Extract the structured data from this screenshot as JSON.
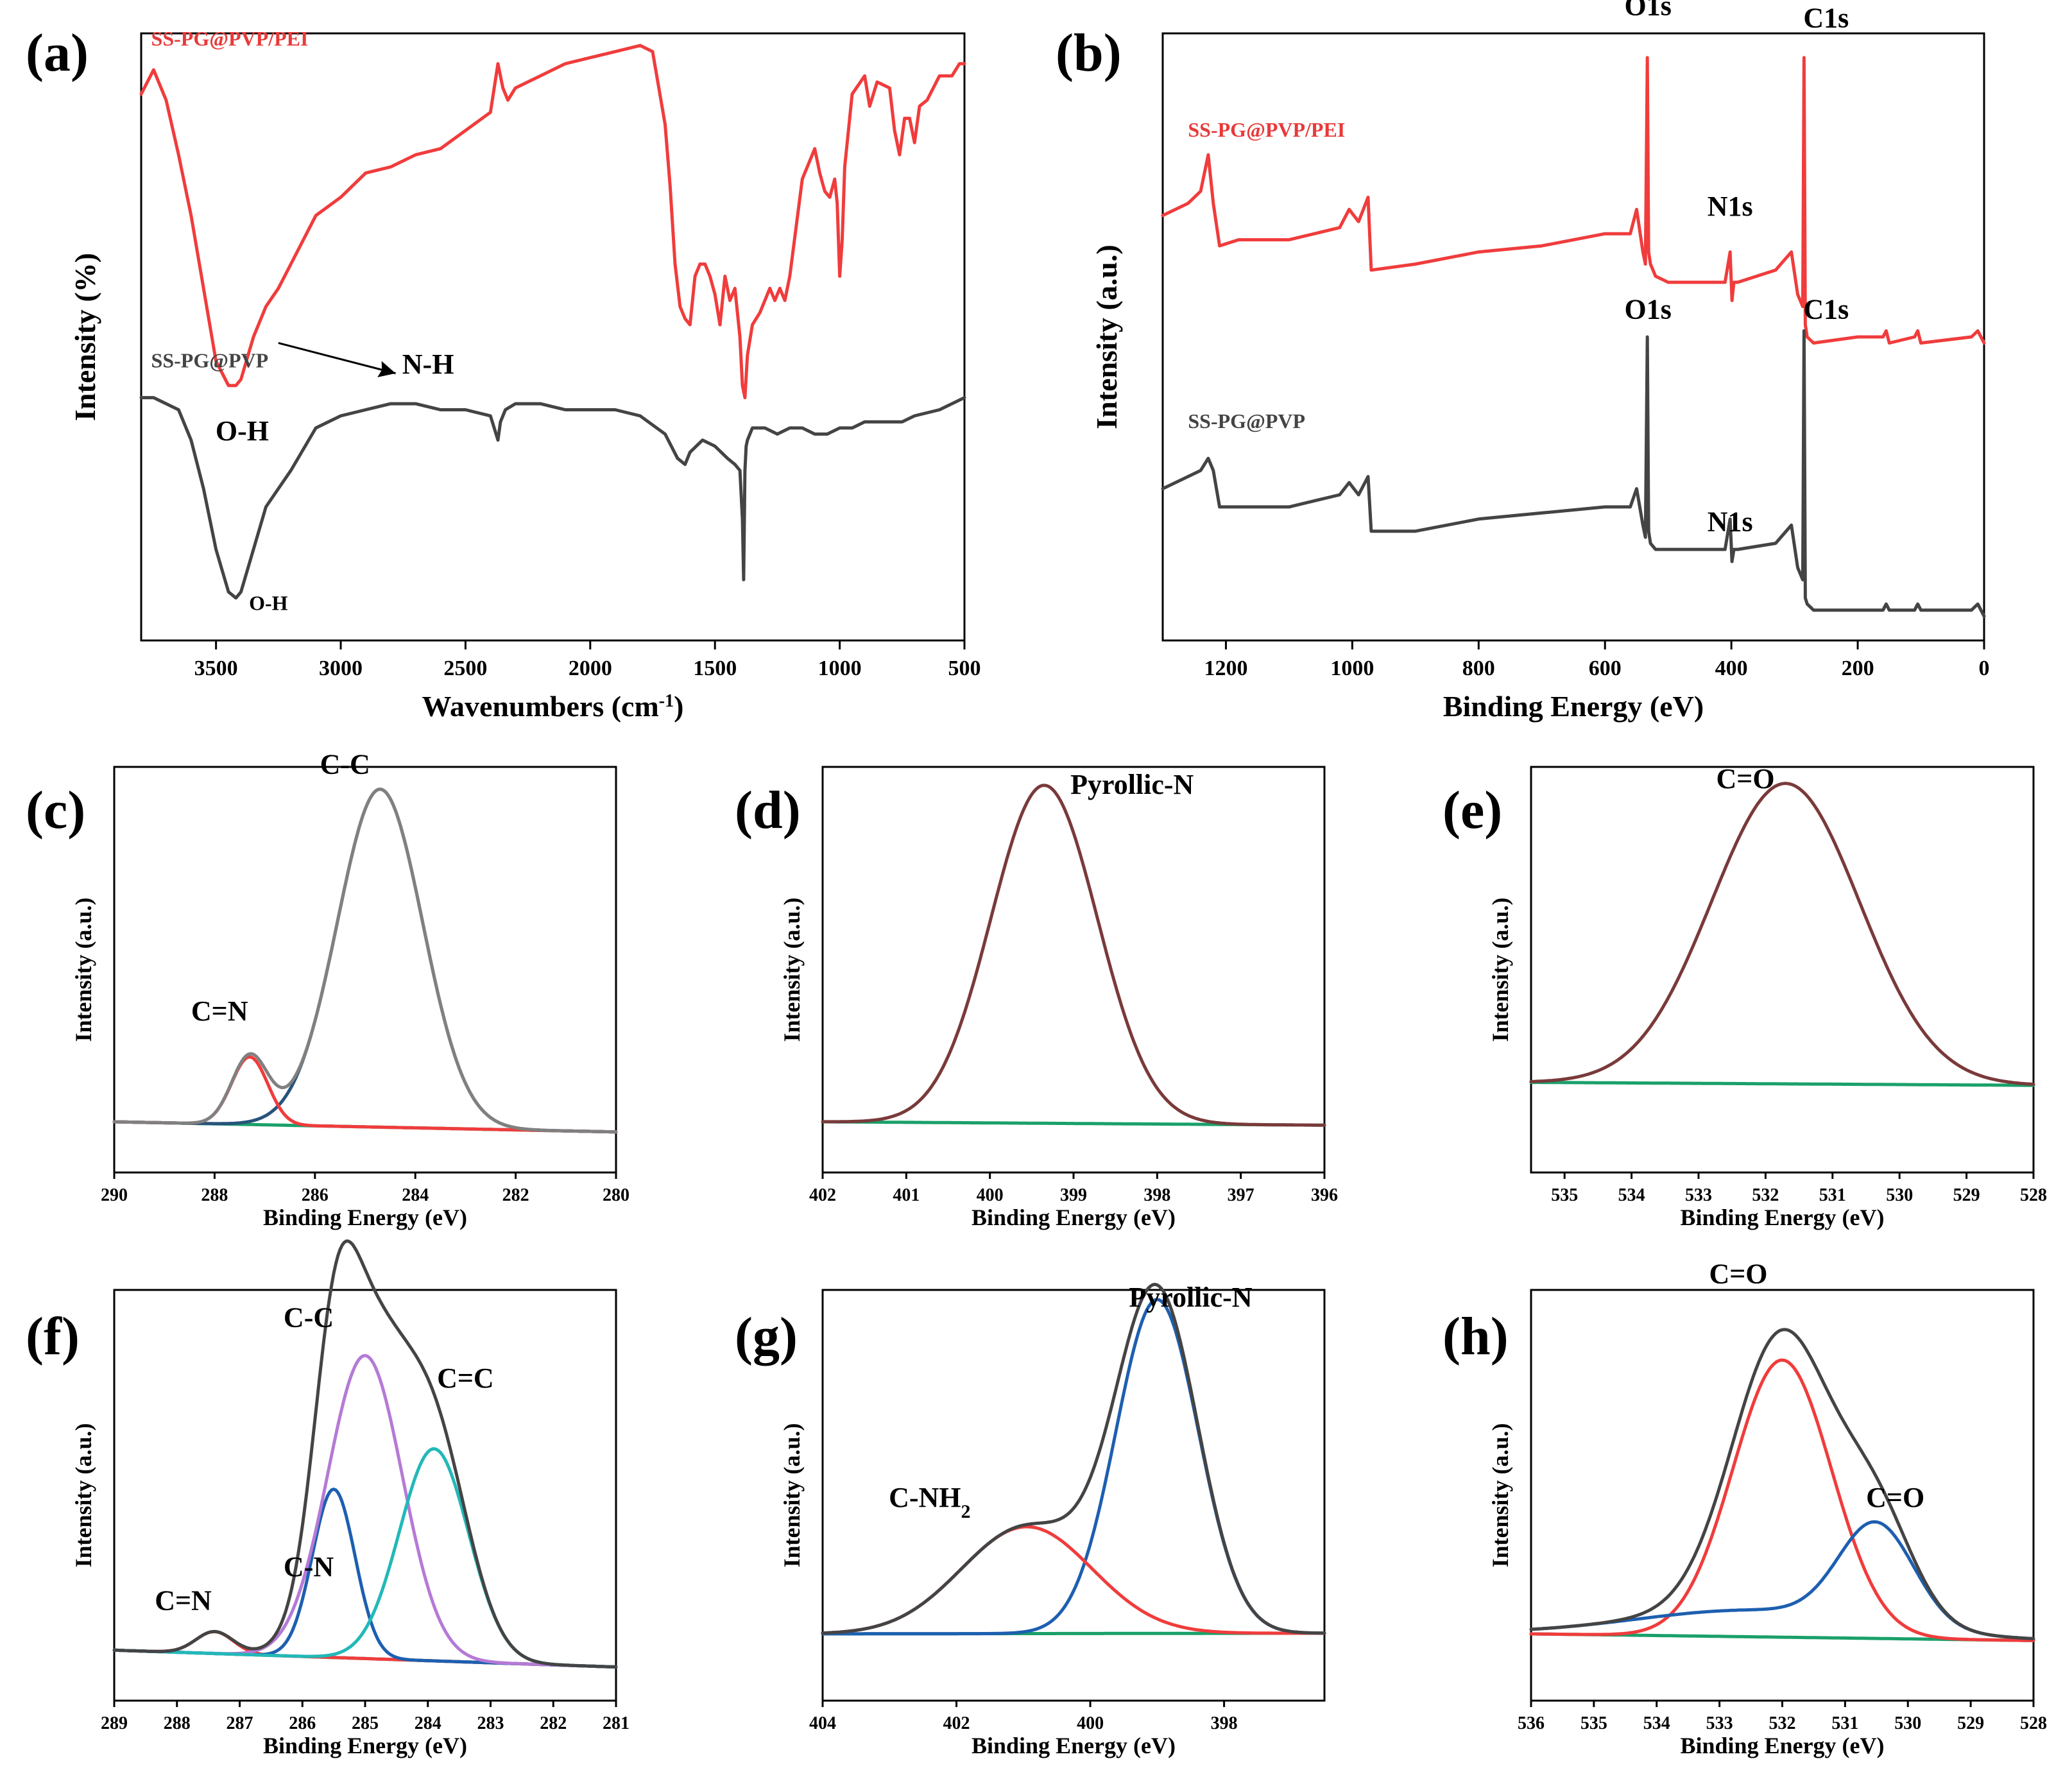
{
  "colors": {
    "red": "#f03c3c",
    "dark": "#444444",
    "navy": "#27537a",
    "brown": "#7a3a3a",
    "green": "#1aa06a",
    "blue": "#1d5fb0",
    "purple": "#b57ad6",
    "cyan": "#22b8b8",
    "gray": "#808080",
    "red_label": "#e83a3a"
  },
  "chart_data": [
    {
      "panel": "(a)",
      "type": "line",
      "xlabel": "Wavenumbers (cm",
      "xlabel_sup": "-1",
      "xlabel_tail": ")",
      "ylabel": "Intensity (%)",
      "xlim": [
        3800,
        500
      ],
      "ylim": [
        0,
        100
      ],
      "xticks": [
        3500,
        3000,
        2500,
        2000,
        1500,
        1000,
        500
      ],
      "series": [
        {
          "name": "SS-PG@PVP/PEI",
          "color": "red",
          "x": [
            3800,
            3750,
            3700,
            3650,
            3600,
            3550,
            3500,
            3450,
            3420,
            3400,
            3350,
            3300,
            3250,
            3200,
            3100,
            3000,
            2900,
            2800,
            2700,
            2600,
            2500,
            2400,
            2370,
            2350,
            2330,
            2300,
            2200,
            2100,
            2000,
            1900,
            1800,
            1750,
            1700,
            1680,
            1660,
            1640,
            1620,
            1600,
            1580,
            1560,
            1540,
            1520,
            1500,
            1480,
            1460,
            1440,
            1420,
            1400,
            1390,
            1380,
            1370,
            1350,
            1320,
            1300,
            1280,
            1260,
            1240,
            1220,
            1200,
            1150,
            1100,
            1080,
            1060,
            1040,
            1020,
            1010,
            1000,
            990,
            980,
            950,
            900,
            880,
            850,
            800,
            780,
            760,
            740,
            720,
            700,
            680,
            650,
            600,
            550,
            520,
            500
          ],
          "y": [
            90,
            94,
            89,
            80,
            70,
            58,
            46,
            42,
            42,
            43,
            50,
            55,
            58,
            62,
            70,
            73,
            77,
            78,
            80,
            81,
            84,
            87,
            95,
            91,
            89,
            91,
            93,
            95,
            96,
            97,
            98,
            97,
            85,
            75,
            62,
            55,
            53,
            52,
            60,
            62,
            62,
            60,
            57,
            52,
            60,
            56,
            58,
            50,
            42,
            40,
            47,
            52,
            54,
            56,
            58,
            56,
            58,
            56,
            60,
            76,
            81,
            77,
            74,
            73,
            76,
            72,
            60,
            66,
            78,
            90,
            93,
            88,
            92,
            91,
            84,
            80,
            86,
            86,
            82,
            88,
            89,
            93,
            93,
            95,
            95
          ]
        },
        {
          "name": "SS-PG@PVP",
          "color": "dark",
          "x": [
            3800,
            3750,
            3700,
            3650,
            3600,
            3550,
            3500,
            3450,
            3420,
            3400,
            3350,
            3300,
            3250,
            3200,
            3100,
            3000,
            2900,
            2800,
            2700,
            2600,
            2500,
            2400,
            2370,
            2360,
            2340,
            2300,
            2200,
            2100,
            2000,
            1900,
            1800,
            1700,
            1650,
            1620,
            1600,
            1550,
            1500,
            1450,
            1420,
            1400,
            1390,
            1385,
            1380,
            1375,
            1370,
            1350,
            1300,
            1250,
            1200,
            1150,
            1100,
            1050,
            1000,
            950,
            900,
            850,
            800,
            750,
            700,
            600,
            500
          ],
          "y": [
            40,
            40,
            39,
            38,
            33,
            25,
            15,
            8,
            7,
            8,
            15,
            22,
            25,
            28,
            35,
            37,
            38,
            39,
            39,
            38,
            38,
            37,
            33,
            36,
            38,
            39,
            39,
            38,
            38,
            38,
            37,
            34,
            30,
            29,
            31,
            33,
            32,
            30,
            29,
            28,
            20,
            10,
            28,
            32,
            33,
            35,
            35,
            34,
            35,
            35,
            34,
            34,
            35,
            35,
            36,
            36,
            36,
            36,
            37,
            38,
            40
          ]
        }
      ],
      "annotations": {
        "oh_red": "O-H",
        "nh": "N-H",
        "oh_dark": "O-H"
      },
      "legend": {
        "red": "SS-PG@PVP/PEI",
        "dark": "SS-PG@PVP"
      }
    },
    {
      "panel": "(b)",
      "type": "line",
      "xlabel": "Binding Energy (eV)",
      "ylabel": "Intensity (a.u.)",
      "xlim": [
        1300,
        0
      ],
      "ylim": [
        0,
        100
      ],
      "xticks": [
        1200,
        1000,
        800,
        600,
        400,
        200,
        0
      ],
      "series": [
        {
          "name": "SS-PG@PVP/PEI",
          "color": "red",
          "x": [
            1300,
            1260,
            1240,
            1228,
            1220,
            1210,
            1180,
            1100,
            1060,
            1020,
            1005,
            990,
            975,
            970,
            900,
            800,
            700,
            600,
            560,
            550,
            540,
            536,
            533,
            531,
            528,
            520,
            500,
            450,
            410,
            402,
            399,
            396,
            390,
            330,
            305,
            295,
            287,
            285,
            283,
            280,
            270,
            200,
            160,
            155,
            150,
            110,
            105,
            100,
            20,
            10,
            0
          ],
          "y": [
            70,
            72,
            74,
            80,
            72,
            65,
            66,
            66,
            67,
            68,
            71,
            69,
            73,
            61,
            62,
            64,
            65,
            67,
            67,
            71,
            64,
            62,
            96,
            64,
            62,
            60,
            59,
            59,
            59,
            64,
            56,
            59,
            59,
            61,
            64,
            57,
            55,
            96,
            52,
            50,
            49,
            50,
            50,
            51,
            49,
            50,
            51,
            49,
            50,
            51,
            49
          ]
        },
        {
          "name": "SS-PG@PVP",
          "color": "dark",
          "x": [
            1300,
            1260,
            1240,
            1228,
            1220,
            1210,
            1180,
            1100,
            1060,
            1020,
            1005,
            990,
            975,
            970,
            900,
            800,
            700,
            600,
            560,
            550,
            540,
            536,
            533,
            531,
            528,
            520,
            500,
            450,
            410,
            402,
            399,
            396,
            390,
            330,
            305,
            295,
            287,
            285,
            283,
            280,
            270,
            200,
            160,
            155,
            150,
            110,
            105,
            100,
            20,
            10,
            0
          ],
          "y": [
            25,
            27,
            28,
            30,
            28,
            22,
            22,
            22,
            23,
            24,
            26,
            24,
            27,
            18,
            18,
            20,
            21,
            22,
            22,
            25,
            19,
            17,
            50,
            18,
            16,
            15,
            15,
            15,
            15,
            20,
            13,
            15,
            15,
            16,
            19,
            12,
            10,
            51,
            7,
            6,
            5,
            5,
            5,
            6,
            5,
            5,
            6,
            5,
            5,
            6,
            4
          ]
        }
      ],
      "annotations": {
        "o1s_red": "O1s",
        "c1s_red": "C1s",
        "n1s_red": "N1s",
        "o1s_dark": "O1s",
        "c1s_dark": "C1s",
        "n1s_dark": "N1s"
      },
      "legend": {
        "red": "SS-PG@PVP/PEI",
        "dark": "SS-PG@PVP"
      }
    },
    {
      "panel": "(c)",
      "type": "line",
      "xlabel": "Binding Energy (eV)",
      "ylabel": "Intensity (a.u.)",
      "xlim": [
        290,
        280
      ],
      "ylim": [
        -0.15,
        1.05
      ],
      "xticks": [
        290,
        288,
        286,
        284,
        282,
        280
      ],
      "baseline": {
        "start": 0.0,
        "end": -0.03,
        "color": "green"
      },
      "peaks": [
        {
          "name": "C-C",
          "center": 284.7,
          "height": 1.0,
          "fwhm": 2.0,
          "color": "navy"
        },
        {
          "name": "C=N",
          "center": 287.3,
          "height": 0.2,
          "fwhm": 0.85,
          "color": "red"
        }
      ],
      "envelope": {
        "color": "gray"
      },
      "annotations": {
        "cc": "C-C",
        "cn": "C=N"
      }
    },
    {
      "panel": "(d)",
      "type": "line",
      "xlabel": "Binding Energy (eV)",
      "ylabel": "Intensity (a.u.)",
      "xlim": [
        402,
        396
      ],
      "ylim": [
        -0.15,
        1.05
      ],
      "xticks": [
        402,
        401,
        400,
        399,
        398,
        397,
        396
      ],
      "baseline": {
        "start": 0.0,
        "end": -0.01,
        "color": "green"
      },
      "peaks": [
        {
          "name": "Pyrollic-N",
          "center": 399.35,
          "height": 1.0,
          "fwhm": 1.5,
          "color": "brown"
        }
      ],
      "annotations": {
        "pyn": "Pyrollic-N"
      }
    },
    {
      "panel": "(e)",
      "type": "line",
      "xlabel": "Binding Energy (eV)",
      "ylabel": "Intensity (a.u.)",
      "xlim": [
        535.5,
        528
      ],
      "ylim": [
        -0.3,
        1.05
      ],
      "xticks": [
        535,
        534,
        533,
        532,
        531,
        530,
        529,
        528
      ],
      "baseline": {
        "start": 0.0,
        "end": -0.01,
        "color": "green"
      },
      "peaks": [
        {
          "name": "C=O",
          "center": 531.7,
          "height": 1.0,
          "fwhm": 2.6,
          "color": "brown"
        }
      ],
      "annotations": {
        "co": "C=O"
      }
    },
    {
      "panel": "(f)",
      "type": "line",
      "xlabel": "Binding Energy (eV)",
      "ylabel": "Intensity (a.u.)",
      "xlim": [
        289,
        281
      ],
      "ylim": [
        -0.15,
        1.07
      ],
      "xticks": [
        289,
        288,
        287,
        286,
        285,
        284,
        283,
        282,
        281
      ],
      "baseline": {
        "start": 0.0,
        "end": -0.05,
        "color": "green"
      },
      "peaks": [
        {
          "name": "C=N",
          "center": 287.4,
          "height": 0.065,
          "fwhm": 0.7,
          "color": "red"
        },
        {
          "name": "C-N",
          "center": 285.5,
          "height": 0.5,
          "fwhm": 0.8,
          "color": "blue"
        },
        {
          "name": "C-C",
          "center": 285.0,
          "height": 0.9,
          "fwhm": 1.4,
          "color": "purple"
        },
        {
          "name": "C=C",
          "center": 283.9,
          "height": 0.63,
          "fwhm": 1.3,
          "color": "cyan"
        }
      ],
      "envelope": {
        "color": "dark"
      },
      "annotations": {
        "cn_double": "C=N",
        "cn_single": "C-N",
        "cc": "C-C",
        "cc_double": "C=C"
      }
    },
    {
      "panel": "(g)",
      "type": "line",
      "xlabel": "Binding Energy (eV)",
      "ylabel": "Intensity (a.u.)",
      "xlim": [
        404,
        396.5
      ],
      "ylim": [
        -0.2,
        1.03
      ],
      "xticks": [
        404,
        402,
        400,
        398
      ],
      "baseline": {
        "start": 0.0,
        "end": 0.002,
        "color": "green"
      },
      "peaks": [
        {
          "name": "Pyrollic-N",
          "center": 399.0,
          "height": 1.0,
          "fwhm": 1.45,
          "color": "blue"
        },
        {
          "name": "C-NH2",
          "center": 400.95,
          "height": 0.32,
          "fwhm": 2.3,
          "color": "red"
        }
      ],
      "envelope": {
        "color": "dark"
      },
      "annotations": {
        "pyn": "Pyrollic-N",
        "cnh": "C-NH",
        "cnh_sub": "2"
      }
    },
    {
      "panel": "(h)",
      "type": "line",
      "xlabel": "Binding Energy (eV)",
      "ylabel": "Intensity (a.u.)",
      "xlim": [
        536,
        528
      ],
      "ylim": [
        -0.2,
        1.03
      ],
      "xticks": [
        536,
        535,
        534,
        533,
        532,
        531,
        530,
        529,
        528
      ],
      "baseline": {
        "start": 0.0,
        "end": -0.02,
        "color": "green"
      },
      "peaks": [
        {
          "name": "C=O",
          "center": 532.0,
          "height": 0.83,
          "fwhm": 1.85,
          "color": "red"
        },
        {
          "name": "C=O",
          "center": 530.5,
          "height": 0.3,
          "fwhm": 1.4,
          "color": "blue"
        },
        {
          "name": "",
          "center": 532.4,
          "height": 0.08,
          "fwhm": 4.5,
          "color": "blue",
          "tail_only": true
        }
      ],
      "envelope": {
        "color": "dark"
      },
      "annotations": {
        "co_main": "C=O",
        "co_side": "C=O"
      }
    }
  ]
}
